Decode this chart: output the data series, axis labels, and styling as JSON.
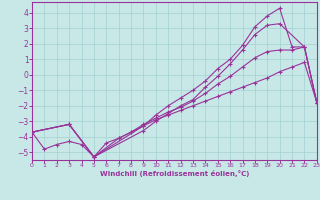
{
  "xlabel": "Windchill (Refroidissement éolien,°C)",
  "bg_color": "#c8e8e8",
  "grid_color": "#aad4d4",
  "line_color": "#993399",
  "xlim": [
    0,
    23
  ],
  "ylim": [
    -5.5,
    4.7
  ],
  "xticks": [
    0,
    1,
    2,
    3,
    4,
    5,
    6,
    7,
    8,
    9,
    10,
    11,
    12,
    13,
    14,
    15,
    16,
    17,
    18,
    19,
    20,
    21,
    22,
    23
  ],
  "yticks": [
    -5,
    -4,
    -3,
    -2,
    -1,
    0,
    1,
    2,
    3,
    4
  ],
  "series": [
    {
      "x": [
        0,
        1,
        2,
        3,
        4,
        5,
        6,
        7,
        8,
        9,
        10,
        11,
        12,
        13,
        14,
        15,
        16,
        17,
        18,
        19,
        20,
        21,
        22,
        23
      ],
      "y": [
        -3.7,
        -4.8,
        -4.5,
        -4.3,
        -4.5,
        -5.3,
        -4.4,
        -4.1,
        -3.7,
        -3.3,
        -2.9,
        -2.6,
        -2.3,
        -2.0,
        -1.7,
        -1.4,
        -1.1,
        -0.8,
        -0.5,
        -0.2,
        0.2,
        0.5,
        0.8,
        -1.8
      ]
    },
    {
      "x": [
        0,
        3,
        5,
        9,
        10,
        11,
        12,
        13,
        14,
        15,
        16,
        17,
        18,
        19,
        20,
        21,
        22,
        23
      ],
      "y": [
        -3.7,
        -3.2,
        -5.3,
        -3.3,
        -2.6,
        -2.0,
        -1.5,
        -1.0,
        -0.4,
        0.4,
        1.0,
        1.9,
        3.1,
        3.8,
        4.3,
        1.8,
        1.8,
        -1.8
      ]
    },
    {
      "x": [
        0,
        3,
        5,
        9,
        10,
        11,
        12,
        13,
        14,
        15,
        16,
        17,
        18,
        19,
        20,
        22,
        23
      ],
      "y": [
        -3.7,
        -3.2,
        -5.3,
        -3.6,
        -3.0,
        -2.5,
        -2.0,
        -1.6,
        -0.8,
        -0.1,
        0.7,
        1.6,
        2.6,
        3.2,
        3.3,
        1.8,
        -1.8
      ]
    },
    {
      "x": [
        0,
        3,
        5,
        7,
        8,
        9,
        10,
        11,
        12,
        13,
        14,
        15,
        16,
        17,
        18,
        19,
        20,
        21,
        22,
        23
      ],
      "y": [
        -3.7,
        -3.2,
        -5.3,
        -4.1,
        -3.7,
        -3.2,
        -2.8,
        -2.4,
        -2.1,
        -1.7,
        -1.2,
        -0.6,
        -0.1,
        0.5,
        1.1,
        1.5,
        1.6,
        1.6,
        1.8,
        -1.8
      ]
    }
  ]
}
